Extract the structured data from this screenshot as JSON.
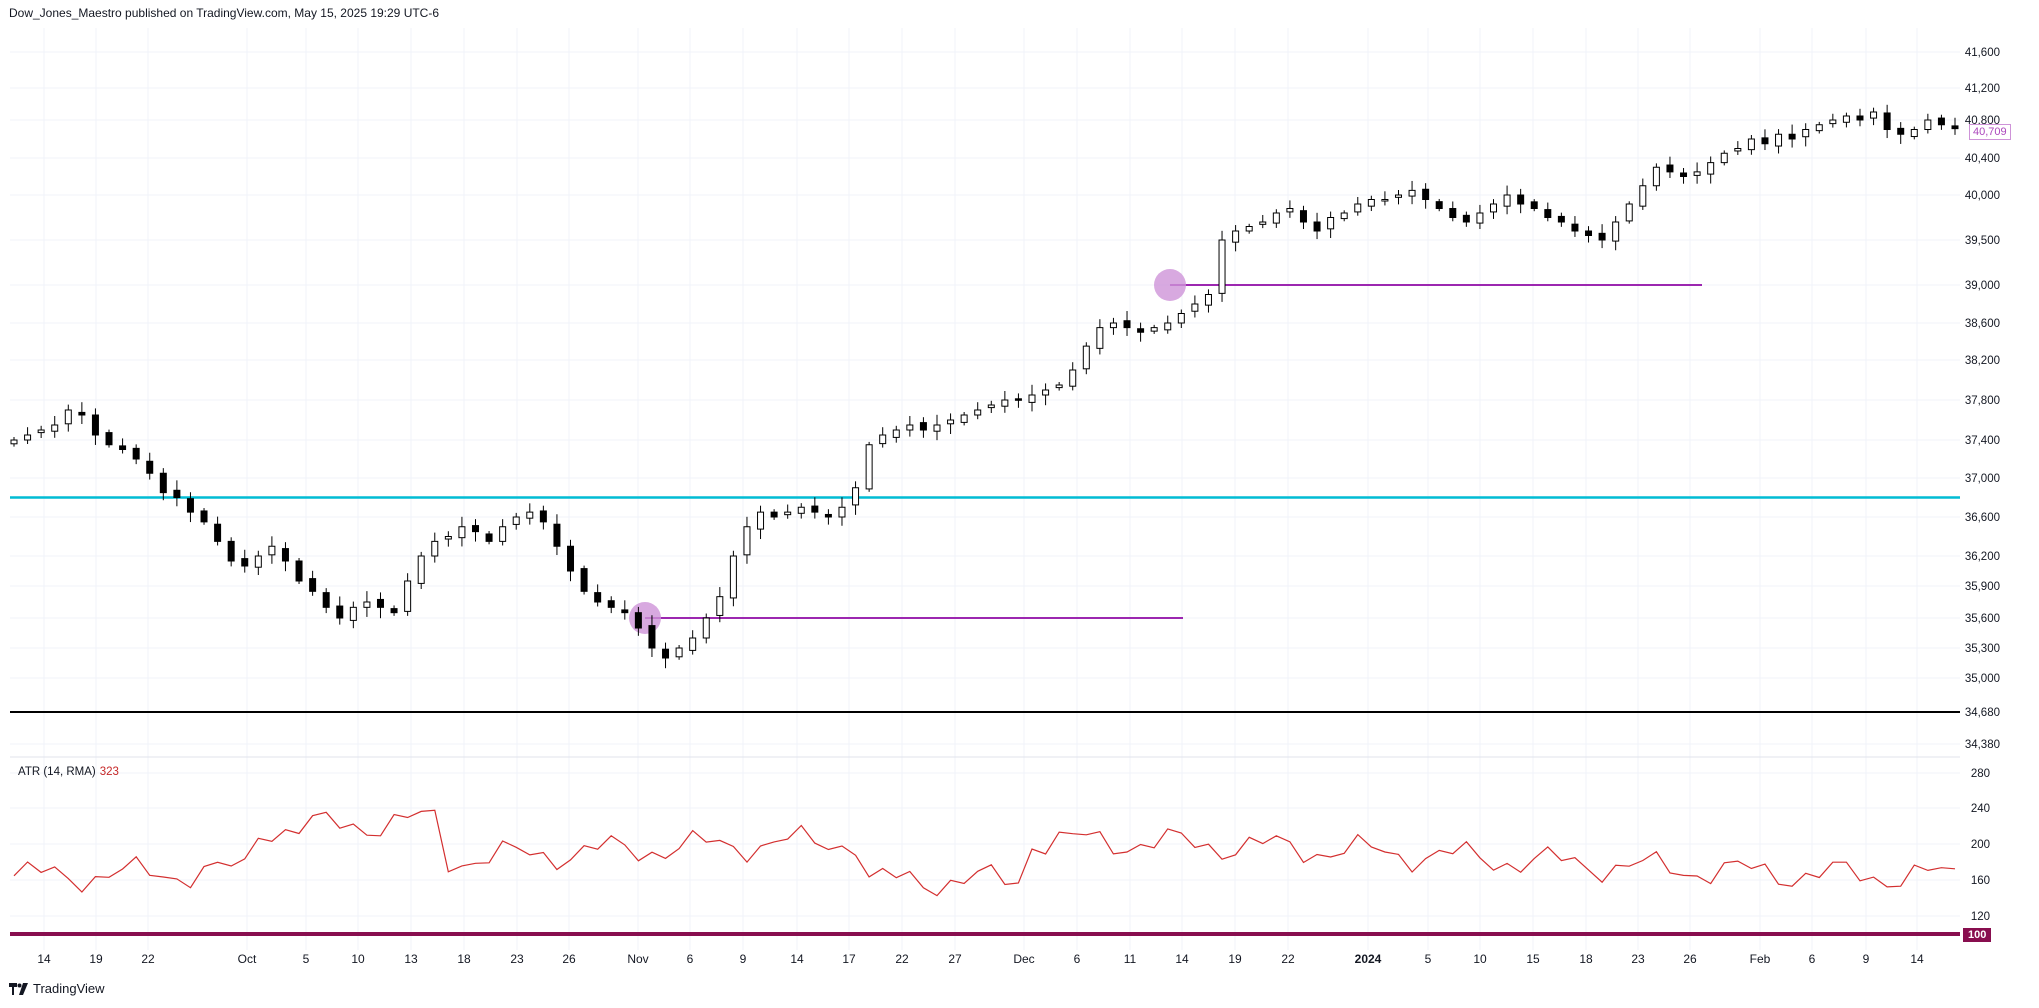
{
  "header": {
    "attribution": "Dow_Jones_Maestro published on TradingView.com, May 15, 2025 19:29 UTC-6"
  },
  "footer": {
    "brand": "TradingView"
  },
  "atr": {
    "label": "ATR (14, RMA)",
    "value": "323",
    "level_label": "100"
  },
  "last_price": {
    "label": "40,709"
  },
  "colors": {
    "candle_up": "#ffffff",
    "candle_down": "#000000",
    "wick": "#000000",
    "support_cyan": "#00bcd4",
    "support_black": "#000000",
    "gap_line": "#9c27b0",
    "gap_circle": "#ce93d8",
    "atr_line": "#d32f2f",
    "atr_level": "#880e4f",
    "grid": "#f0f3fa"
  },
  "chart_data": {
    "type": "candlestick",
    "price_axis": {
      "ticks": [
        "41,600",
        "41,200",
        "40,800",
        "40,400",
        "40,000",
        "39,500",
        "39,000",
        "38,600",
        "38,200",
        "37,800",
        "37,400",
        "37,000",
        "36,600",
        "36,200",
        "35,900",
        "35,600",
        "35,300",
        "35,000",
        "34,680",
        "34,380"
      ]
    },
    "atr_axis": {
      "ticks": [
        "280",
        "240",
        "200",
        "160",
        "120"
      ]
    },
    "time_axis": {
      "labels": [
        "14",
        "19",
        "22",
        "Oct",
        "5",
        "10",
        "13",
        "18",
        "23",
        "26",
        "Nov",
        "6",
        "9",
        "14",
        "17",
        "22",
        "27",
        "Dec",
        "6",
        "11",
        "14",
        "19",
        "22",
        "2024",
        "5",
        "10",
        "15",
        "18",
        "23",
        "26",
        "Feb",
        "6",
        "9",
        "14"
      ]
    },
    "horizontal_levels": [
      {
        "price": 36800
      },
      {
        "price": 34680
      },
      {
        "price": 35600
      },
      {
        "price": 39000
      }
    ],
    "close_path": [
      37400,
      37450,
      37500,
      37550,
      37700,
      37650,
      37450,
      37350,
      37300,
      37200,
      37050,
      36850,
      36800,
      36650,
      36550,
      36350,
      36150,
      36100,
      36200,
      36300,
      36150,
      35950,
      35850,
      35700,
      35600,
      35700,
      35750,
      35700,
      35650,
      35950,
      36200,
      36350,
      36400,
      36500,
      36450,
      36350,
      36500,
      36600,
      36650,
      36550,
      36300,
      36050,
      35850,
      35750,
      35700,
      35650,
      35500,
      35300,
      35200,
      35300,
      35400,
      35600,
      35800,
      36200,
      36500,
      36650,
      36600,
      36650,
      36700,
      36650,
      36600,
      36700,
      36900,
      37350,
      37450,
      37500,
      37550,
      37500,
      37550,
      37600,
      37650,
      37700,
      37750,
      37800,
      37800,
      37850,
      37900,
      37950,
      38100,
      38350,
      38550,
      38600,
      38550,
      38500,
      38550,
      38600,
      38700,
      38800,
      38900,
      39500,
      39600,
      39650,
      39700,
      39800,
      39850,
      39700,
      39600,
      39750,
      39800,
      39900,
      39950,
      39950,
      40000,
      40050,
      39950,
      39850,
      39750,
      39700,
      39800,
      39900,
      40000,
      39900,
      39850,
      39750,
      39700,
      39600,
      39550,
      39500,
      39700,
      39900,
      40100,
      40300,
      40250,
      40200,
      40250,
      40350,
      40450,
      40500,
      40600,
      40550,
      40650,
      40600,
      40700,
      40750,
      40800,
      40850,
      40800,
      40900,
      40700,
      40650,
      40700,
      40800,
      40750,
      40709
    ]
  }
}
